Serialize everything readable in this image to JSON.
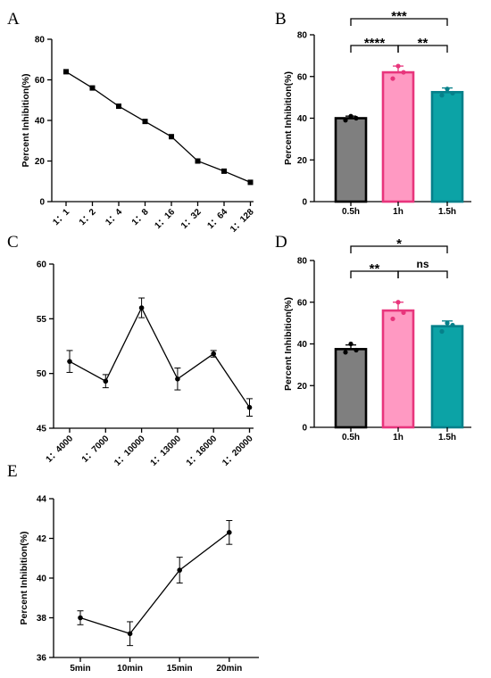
{
  "chart_data": [
    {
      "panel": "A",
      "type": "line",
      "categories": [
        "1：1",
        "1：2",
        "1：4",
        "1：8",
        "1：16",
        "1：32",
        "1：64",
        "1：128"
      ],
      "values": [
        64,
        56,
        47,
        39.5,
        32,
        20,
        15,
        9.5
      ],
      "ylabel": "Percent Inhibition(%)",
      "ylim": [
        0,
        80
      ],
      "yticks": [
        0,
        20,
        40,
        60,
        80
      ],
      "marker": "square",
      "grid": false
    },
    {
      "panel": "B",
      "type": "bar",
      "categories": [
        "0.5h",
        "1h",
        "1.5h"
      ],
      "values": [
        40,
        62,
        52.5
      ],
      "errors": [
        1,
        3,
        2
      ],
      "points": [
        [
          39,
          41,
          40
        ],
        [
          59,
          65,
          62
        ],
        [
          51,
          54,
          52
        ]
      ],
      "colors": {
        "fill": [
          "#7f7f7f",
          "#ff99c2",
          "#0ca3a6"
        ],
        "stroke": [
          "#000000",
          "#e8357c",
          "#06808a"
        ]
      },
      "ylabel": "Percent Inhibition(%)",
      "ylim": [
        0,
        80
      ],
      "yticks": [
        0,
        20,
        40,
        60,
        80
      ],
      "significance": [
        {
          "from": 0,
          "to": 1,
          "label": "****"
        },
        {
          "from": 1,
          "to": 2,
          "label": "**"
        },
        {
          "from": 0,
          "to": 2,
          "label": "***"
        }
      ],
      "grid": false
    },
    {
      "panel": "C",
      "type": "line",
      "categories": [
        "1：4000",
        "1：7000",
        "1：10000",
        "1：13000",
        "1：16000",
        "1：20000"
      ],
      "values": [
        51.1,
        49.3,
        56,
        49.5,
        51.8,
        46.9
      ],
      "errors": [
        1,
        0.6,
        0.9,
        1,
        0.3,
        0.8
      ],
      "ylabel": "",
      "ylim": [
        45,
        60
      ],
      "yticks": [
        45,
        50,
        55,
        60
      ],
      "marker": "circle",
      "grid": false
    },
    {
      "panel": "D",
      "type": "bar",
      "categories": [
        "0.5h",
        "1h",
        "1.5h"
      ],
      "values": [
        37.5,
        56,
        48.5
      ],
      "errors": [
        2,
        4,
        2.5
      ],
      "points": [
        [
          36,
          40,
          37
        ],
        [
          52,
          60,
          55
        ],
        [
          46,
          50,
          49
        ]
      ],
      "colors": {
        "fill": [
          "#7f7f7f",
          "#ff99c2",
          "#0ca3a6"
        ],
        "stroke": [
          "#000000",
          "#e8357c",
          "#06808a"
        ]
      },
      "ylabel": "Percent Inhibition(%)",
      "ylim": [
        0,
        80
      ],
      "yticks": [
        0,
        20,
        40,
        60,
        80
      ],
      "significance": [
        {
          "from": 0,
          "to": 1,
          "label": "**"
        },
        {
          "from": 1,
          "to": 2,
          "label": "ns"
        },
        {
          "from": 0,
          "to": 2,
          "label": "*"
        }
      ],
      "grid": false
    },
    {
      "panel": "E",
      "type": "line",
      "categories": [
        "5min",
        "10min",
        "15min",
        "20min"
      ],
      "values": [
        38,
        37.2,
        40.4,
        42.3
      ],
      "errors": [
        0.35,
        0.6,
        0.65,
        0.6
      ],
      "ylabel": "Percent Inhibition(%)",
      "ylim": [
        36,
        44
      ],
      "yticks": [
        36,
        38,
        40,
        42,
        44
      ],
      "marker": "circle",
      "grid": false
    }
  ]
}
